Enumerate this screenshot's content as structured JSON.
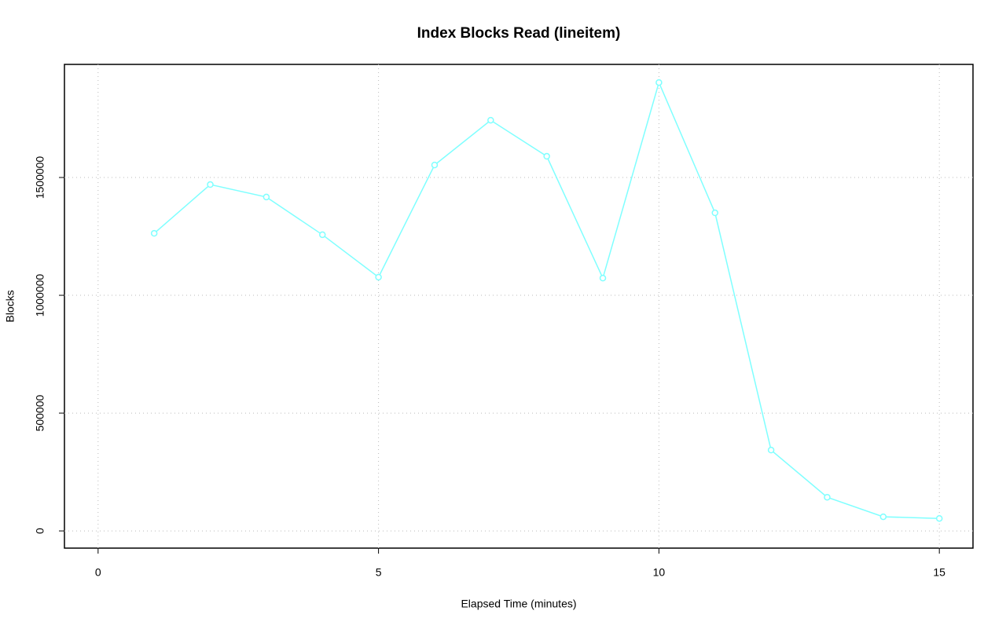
{
  "chart_data": {
    "type": "line",
    "title": "Index Blocks Read (lineitem)",
    "x_label": "Elapsed Time (minutes)",
    "y_label": "Blocks",
    "x": [
      1,
      2,
      3,
      4,
      5,
      6,
      7,
      8,
      9,
      10,
      11,
      12,
      13,
      14,
      15
    ],
    "series": [
      {
        "name": "lineitem",
        "color": "#7fffff",
        "values": [
          1263000,
          1470000,
          1417000,
          1257000,
          1077000,
          1553000,
          1743000,
          1590000,
          1073000,
          1903000,
          1350000,
          343000,
          143000,
          60000,
          53000
        ]
      }
    ],
    "xlim": [
      -0.6,
      15.6
    ],
    "xticks": [
      0,
      5,
      10,
      15
    ],
    "ylim": [
      -73000,
      1980000
    ],
    "yticks": [
      0,
      500000,
      1000000,
      1500000
    ],
    "grid": true,
    "markers": true
  }
}
